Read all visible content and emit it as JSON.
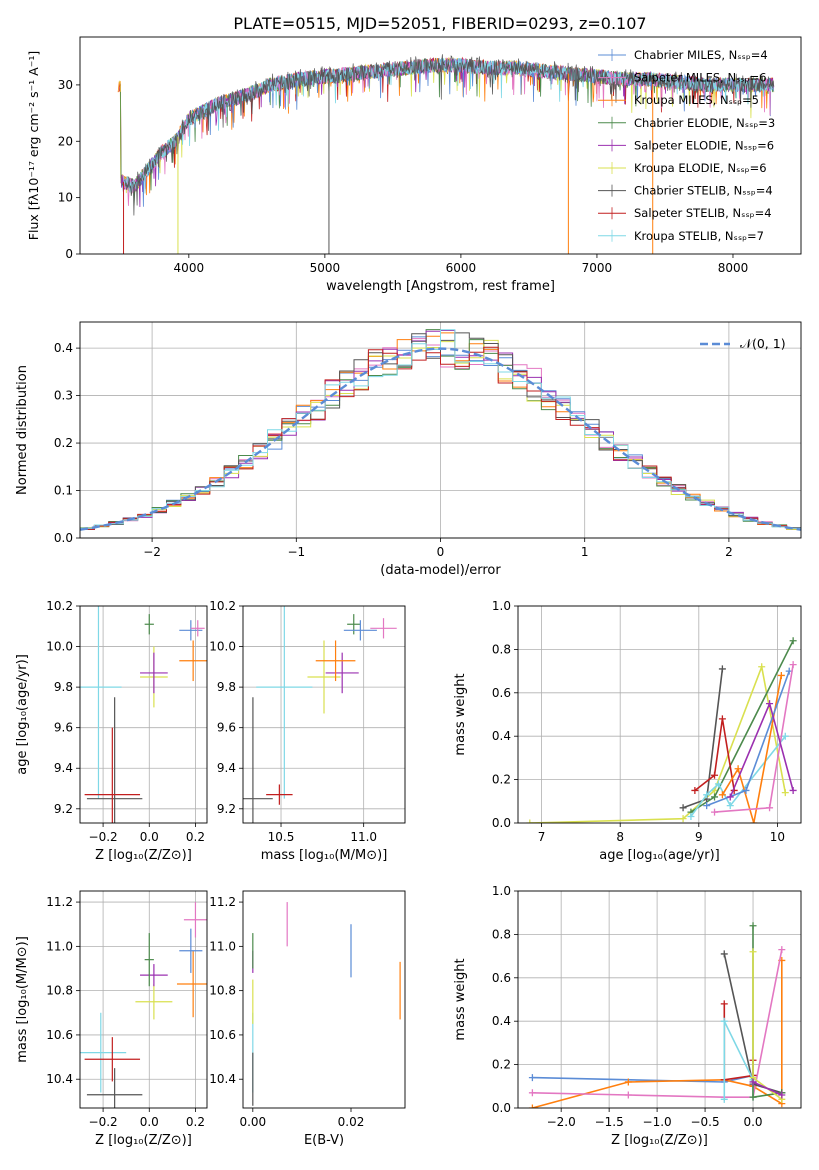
{
  "figure_title": "PLATE=0515, MJD=52051, FIBERID=0293, z=0.107",
  "colors": {
    "chabrier_miles": "#5b8cd6",
    "salpeter_miles": "#e377c2",
    "kroupa_miles": "#ff7f0e",
    "chabrier_elodie": "#4c8a4c",
    "salpeter_elodie": "#9b30b0",
    "kroupa_elodie": "#d9e04f",
    "chabrier_stelib": "#555555",
    "salpeter_stelib": "#c21f1f",
    "kroupa_stelib": "#7fd8e6",
    "normal_curve": "#5b8cd6"
  },
  "chart_data": [
    {
      "id": "spectrum",
      "type": "line",
      "xlabel": "wavelength [Angstrom, rest frame]",
      "ylabel": "Flux [fλ10⁻¹⁷ erg cm⁻² s⁻¹ A⁻¹]",
      "xlim": [
        3200,
        8500
      ],
      "ylim": [
        0,
        38.5
      ],
      "xticks": [
        "4000",
        "5000",
        "6000",
        "7000",
        "8000"
      ],
      "yticks": [
        "0",
        "10",
        "20",
        "30"
      ],
      "grid": false,
      "legend_position": "upper-right",
      "legend": [
        "Chabrier MILES, Nₛₛₚ=4",
        "Salpeter MILES, Nₛₛₚ=6",
        "Kroupa MILES, Nₛₛₚ=5",
        "Chabrier ELODIE, Nₛₛₚ=3",
        "Salpeter ELODIE, Nₛₛₚ=6",
        "Kroupa ELODIE, Nₛₛₚ=6",
        "Chabrier STELIB, Nₛₛₚ=4",
        "Salpeter STELIB, Nₛₛₚ=4",
        "Kroupa STELIB, Nₛₛₚ=7"
      ],
      "continuum": {
        "x": [
          3500,
          3600,
          3700,
          3800,
          3900,
          4000,
          4200,
          4400,
          4600,
          4800,
          5000,
          5200,
          5400,
          5600,
          5800,
          6000,
          6200,
          6400,
          6600,
          6800,
          7000,
          7200,
          7400,
          7600,
          7800,
          8000,
          8200,
          8300
        ],
        "y": [
          13,
          12,
          15,
          18,
          20,
          24,
          26.5,
          28,
          30,
          31,
          31.5,
          32,
          32.5,
          33,
          33.5,
          33.5,
          33,
          33,
          32.5,
          32,
          31.5,
          31,
          31,
          30.5,
          30,
          30,
          30,
          30
        ]
      },
      "drops": [
        {
          "x": 3520,
          "y": 0
        },
        {
          "x": 3920,
          "y": 0
        },
        {
          "x": 5030,
          "y": 0
        },
        {
          "x": 6790,
          "y": 0
        },
        {
          "x": 7410,
          "y": 0
        }
      ]
    },
    {
      "id": "residual_hist",
      "type": "histogram",
      "xlabel": "(data-model)/error",
      "ylabel": "Normed distribution",
      "xlim": [
        -2.5,
        2.5
      ],
      "ylim": [
        0,
        0.455
      ],
      "xticks": [
        "−2",
        "−1",
        "0",
        "1",
        "2"
      ],
      "yticks": [
        "0.0",
        "0.1",
        "0.2",
        "0.3",
        "0.4"
      ],
      "grid": true,
      "legend_position": "upper-right",
      "curve_label": "𝒩(0, 1)",
      "bin_width": 0.1
    },
    {
      "id": "age_vs_Z",
      "type": "scatter",
      "xlabel": "Z [log₁₀(Z/Z⊙)]",
      "ylabel": "age  [log₁₀(age/yr)]",
      "xlim": [
        -0.3,
        0.25
      ],
      "ylim": [
        9.13,
        10.2
      ],
      "xticks": [
        "−0.2",
        "0.0",
        "0.2"
      ],
      "yticks": [
        "9.2",
        "9.4",
        "9.6",
        "9.8",
        "10.0",
        "10.2"
      ],
      "grid": true,
      "points": [
        {
          "c": "kroupa_stelib",
          "x": -0.22,
          "xe": 0.1,
          "y": 9.8,
          "ye": 0.55
        },
        {
          "c": "chabrier_stelib",
          "x": -0.15,
          "xe": 0.12,
          "y": 9.25,
          "ye": 0.5
        },
        {
          "c": "salpeter_stelib",
          "x": -0.16,
          "xe": 0.12,
          "y": 9.27,
          "ye": 0.33
        },
        {
          "c": "kroupa_elodie",
          "x": 0.02,
          "xe": 0.06,
          "y": 9.85,
          "ye": 0.15
        },
        {
          "c": "salpeter_elodie",
          "x": 0.02,
          "xe": 0.06,
          "y": 9.87,
          "ye": 0.1
        },
        {
          "c": "chabrier_elodie",
          "x": 0.0,
          "xe": 0.02,
          "y": 10.11,
          "ye": 0.05
        },
        {
          "c": "kroupa_miles",
          "x": 0.19,
          "xe": 0.06,
          "y": 9.93,
          "ye": 0.1
        },
        {
          "c": "chabrier_miles",
          "x": 0.18,
          "xe": 0.05,
          "y": 10.08,
          "ye": 0.05
        },
        {
          "c": "salpeter_miles",
          "x": 0.21,
          "xe": 0.03,
          "y": 10.09,
          "ye": 0.04
        }
      ]
    },
    {
      "id": "age_vs_mass",
      "type": "scatter",
      "xlabel": "mass [log₁₀(M/M⊙)]",
      "ylabel": "",
      "xlim": [
        10.27,
        11.25
      ],
      "ylim": [
        9.13,
        10.2
      ],
      "xticks": [
        "10.5",
        "11.0"
      ],
      "yticks": [
        "9.2",
        "9.4",
        "9.6",
        "9.8",
        "10.0",
        "10.2"
      ],
      "grid": true,
      "points": [
        {
          "c": "kroupa_stelib",
          "x": 10.52,
          "xe": 0.17,
          "y": 9.8,
          "ye": 0.55
        },
        {
          "c": "chabrier_stelib",
          "x": 10.33,
          "xe": 0.12,
          "y": 9.25,
          "ye": 0.5
        },
        {
          "c": "salpeter_stelib",
          "x": 10.49,
          "xe": 0.08,
          "y": 9.27,
          "ye": 0.05
        },
        {
          "c": "kroupa_elodie",
          "x": 10.76,
          "xe": 0.1,
          "y": 9.85,
          "ye": 0.18
        },
        {
          "c": "salpeter_elodie",
          "x": 10.87,
          "xe": 0.1,
          "y": 9.87,
          "ye": 0.1
        },
        {
          "c": "chabrier_elodie",
          "x": 10.94,
          "xe": 0.04,
          "y": 10.11,
          "ye": 0.05
        },
        {
          "c": "kroupa_miles",
          "x": 10.83,
          "xe": 0.12,
          "y": 9.93,
          "ye": 0.1
        },
        {
          "c": "chabrier_miles",
          "x": 10.98,
          "xe": 0.1,
          "y": 10.08,
          "ye": 0.05
        },
        {
          "c": "salpeter_miles",
          "x": 11.12,
          "xe": 0.08,
          "y": 10.09,
          "ye": 0.05
        }
      ]
    },
    {
      "id": "weight_vs_age",
      "type": "line",
      "xlabel": "age  [log₁₀(age/yr)]",
      "ylabel": "mass weight",
      "xlim": [
        6.7,
        10.3
      ],
      "ylim": [
        0,
        1.0
      ],
      "xticks": [
        "7",
        "8",
        "9",
        "10"
      ],
      "yticks": [
        "0.0",
        "0.2",
        "0.4",
        "0.6",
        "0.8",
        "1.0"
      ],
      "grid": true,
      "series": [
        {
          "c": "kroupa_elodie",
          "x": [
            6.85,
            8.8,
            9.2,
            9.8,
            10.1
          ],
          "y": [
            0.0,
            0.02,
            0.15,
            0.72,
            0.14
          ]
        },
        {
          "c": "chabrier_elodie",
          "x": [
            8.9,
            9.2,
            10.2
          ],
          "y": [
            0.05,
            0.12,
            0.84
          ]
        },
        {
          "c": "chabrier_stelib",
          "x": [
            8.8,
            9.1,
            9.3
          ],
          "y": [
            0.07,
            0.11,
            0.71
          ]
        },
        {
          "c": "salpeter_stelib",
          "x": [
            8.95,
            9.2,
            9.3,
            9.45
          ],
          "y": [
            0.15,
            0.22,
            0.48,
            0.15
          ]
        },
        {
          "c": "kroupa_stelib",
          "x": [
            8.9,
            9.1,
            9.25,
            9.4,
            10.1
          ],
          "y": [
            0.03,
            0.13,
            0.18,
            0.08,
            0.4
          ]
        },
        {
          "c": "kroupa_miles",
          "x": [
            9.3,
            9.5,
            9.7,
            10.05
          ],
          "y": [
            0.13,
            0.25,
            0.0,
            0.68
          ]
        },
        {
          "c": "chabrier_miles",
          "x": [
            9.1,
            9.6,
            10.15
          ],
          "y": [
            0.08,
            0.15,
            0.7
          ]
        },
        {
          "c": "salpeter_miles",
          "x": [
            9.2,
            9.9,
            10.2
          ],
          "y": [
            0.05,
            0.07,
            0.73
          ]
        },
        {
          "c": "salpeter_elodie",
          "x": [
            9.4,
            9.9,
            10.2
          ],
          "y": [
            0.12,
            0.55,
            0.15
          ]
        }
      ]
    },
    {
      "id": "mass_vs_Z",
      "type": "scatter",
      "xlabel": "Z [log₁₀(Z/Z⊙)]",
      "ylabel": "mass [log₁₀(M/M⊙)]",
      "xlim": [
        -0.3,
        0.25
      ],
      "ylim": [
        10.27,
        11.25
      ],
      "xticks": [
        "−0.2",
        "0.0",
        "0.2"
      ],
      "yticks": [
        "10.4",
        "10.6",
        "10.8",
        "11.0",
        "11.2"
      ],
      "grid": true,
      "points": [
        {
          "c": "kroupa_stelib",
          "x": -0.21,
          "xe": 0.11,
          "y": 10.52,
          "ye": 0.18
        },
        {
          "c": "chabrier_stelib",
          "x": -0.15,
          "xe": 0.12,
          "y": 10.33,
          "ye": 0.12
        },
        {
          "c": "salpeter_stelib",
          "x": -0.16,
          "xe": 0.12,
          "y": 10.49,
          "ye": 0.1
        },
        {
          "c": "kroupa_elodie",
          "x": 0.02,
          "xe": 0.08,
          "y": 10.75,
          "ye": 0.08
        },
        {
          "c": "salpeter_elodie",
          "x": 0.02,
          "xe": 0.06,
          "y": 10.87,
          "ye": 0.05
        },
        {
          "c": "chabrier_elodie",
          "x": 0.0,
          "xe": 0.02,
          "y": 10.94,
          "ye": 0.12
        },
        {
          "c": "kroupa_miles",
          "x": 0.19,
          "xe": 0.07,
          "y": 10.83,
          "ye": 0.15
        },
        {
          "c": "chabrier_miles",
          "x": 0.18,
          "xe": 0.05,
          "y": 10.98,
          "ye": 0.1
        },
        {
          "c": "salpeter_miles",
          "x": 0.2,
          "xe": 0.05,
          "y": 11.12,
          "ye": 0.08
        }
      ]
    },
    {
      "id": "mass_vs_ebv",
      "type": "scatter",
      "xlabel": "E(B-V)",
      "ylabel": "",
      "xlim": [
        -0.002,
        0.031
      ],
      "ylim": [
        10.27,
        11.25
      ],
      "xticks": [
        "0.00",
        "0.02"
      ],
      "yticks": [
        "10.4",
        "10.6",
        "10.8",
        "11.0",
        "11.2"
      ],
      "grid": false,
      "points": [
        {
          "c": "kroupa_stelib",
          "x": 0.0,
          "xe": 0.0,
          "y": 10.52,
          "ye": 0.18
        },
        {
          "c": "chabrier_stelib",
          "x": 0.0,
          "xe": 0.0,
          "y": 10.4,
          "ye": 0.12
        },
        {
          "c": "kroupa_elodie",
          "x": 0.0,
          "xe": 0.0,
          "y": 10.75,
          "ye": 0.1
        },
        {
          "c": "salpeter_elodie",
          "x": 0.0,
          "xe": 0.0,
          "y": 10.93,
          "ye": 0.05
        },
        {
          "c": "chabrier_elodie",
          "x": 0.0,
          "xe": 0.0,
          "y": 10.98,
          "ye": 0.08
        },
        {
          "c": "salpeter_miles",
          "x": 0.007,
          "xe": 0.0,
          "y": 11.1,
          "ye": 0.1
        },
        {
          "c": "chabrier_miles",
          "x": 0.02,
          "xe": 0.0,
          "y": 10.98,
          "ye": 0.12
        },
        {
          "c": "kroupa_miles",
          "x": 0.03,
          "xe": 0.0,
          "y": 10.8,
          "ye": 0.13
        }
      ]
    },
    {
      "id": "weight_vs_Z",
      "type": "line",
      "xlabel": "Z [log₁₀(Z/Z⊙)]",
      "ylabel": "mass weight",
      "xlim": [
        -2.45,
        0.5
      ],
      "ylim": [
        0,
        1.0
      ],
      "xticks": [
        "−2.0",
        "−1.5",
        "−1.0",
        "−0.5",
        "0.0"
      ],
      "yticks": [
        "0.0",
        "0.2",
        "0.4",
        "0.6",
        "0.8",
        "1.0"
      ],
      "grid": true,
      "series": [
        {
          "c": "chabrier_miles",
          "x": [
            -2.3,
            -0.3,
            0.0
          ],
          "y": [
            0.14,
            0.12,
            0.15
          ]
        },
        {
          "c": "kroupa_miles",
          "x": [
            -2.3,
            -1.3,
            -0.3,
            0.0,
            0.3,
            0.3
          ],
          "y": [
            0.0,
            0.12,
            0.13,
            0.1,
            0.02,
            0.68
          ]
        },
        {
          "c": "salpeter_miles",
          "x": [
            -2.3,
            -1.3,
            -0.3,
            0.0,
            0.3
          ],
          "y": [
            0.07,
            0.06,
            0.05,
            0.05,
            0.73
          ]
        },
        {
          "c": "chabrier_stelib",
          "x": [
            -0.3,
            0.0,
            0.3
          ],
          "y": [
            0.71,
            0.11,
            0.07
          ]
        },
        {
          "c": "salpeter_stelib",
          "x": [
            -0.3,
            -0.3,
            0.0,
            0.0
          ],
          "y": [
            0.48,
            0.13,
            0.15,
            0.22
          ]
        },
        {
          "c": "kroupa_stelib",
          "x": [
            -0.3,
            -0.3,
            0.0,
            0.0
          ],
          "y": [
            0.04,
            0.4,
            0.13,
            0.05
          ]
        },
        {
          "c": "chabrier_elodie",
          "x": [
            0.0,
            0.0,
            0.3
          ],
          "y": [
            0.84,
            0.05,
            0.07
          ]
        },
        {
          "c": "kroupa_elodie",
          "x": [
            0.0,
            0.0,
            0.3
          ],
          "y": [
            0.72,
            0.14,
            0.04
          ]
        },
        {
          "c": "salpeter_elodie",
          "x": [
            0.0,
            0.3
          ],
          "y": [
            0.12,
            0.06
          ]
        }
      ]
    }
  ]
}
